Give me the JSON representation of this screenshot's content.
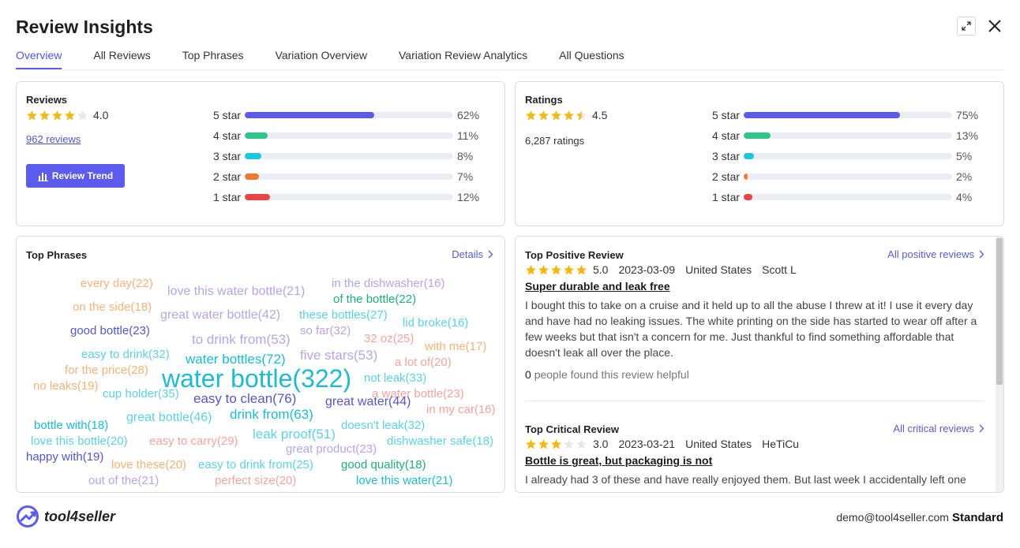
{
  "header": {
    "title": "Review Insights",
    "expand_icon": "expand-icon",
    "close_icon": "close-icon"
  },
  "tabs": [
    {
      "label": "Overview",
      "active": true
    },
    {
      "label": "All Reviews"
    },
    {
      "label": "Top Phrases"
    },
    {
      "label": "Variation Overview"
    },
    {
      "label": "Variation Review Analytics"
    },
    {
      "label": "All Questions"
    }
  ],
  "reviews": {
    "title": "Reviews",
    "rating": "4.0",
    "rating_value": 4.0,
    "count_link": "962 reviews",
    "trend_button": "Review Trend",
    "distribution": [
      {
        "label": "5 star",
        "pct": "62%",
        "value": 62,
        "color": "#5b5be6"
      },
      {
        "label": "4 star",
        "pct": "11%",
        "value": 11,
        "color": "#2ec48a"
      },
      {
        "label": "3 star",
        "pct": "8%",
        "value": 8,
        "color": "#1cc6dd"
      },
      {
        "label": "2 star",
        "pct": "7%",
        "value": 7,
        "color": "#f07a35"
      },
      {
        "label": "1 star",
        "pct": "12%",
        "value": 12,
        "color": "#e84545"
      }
    ]
  },
  "ratings": {
    "title": "Ratings",
    "rating": "4.5",
    "rating_value": 4.5,
    "count": "6,287 ratings",
    "distribution": [
      {
        "label": "5 star",
        "pct": "75%",
        "value": 75,
        "color": "#5b5be6"
      },
      {
        "label": "4 star",
        "pct": "13%",
        "value": 13,
        "color": "#2ec48a"
      },
      {
        "label": "3 star",
        "pct": "5%",
        "value": 5,
        "color": "#1cc6dd"
      },
      {
        "label": "2 star",
        "pct": "2%",
        "value": 2,
        "color": "#f07a35"
      },
      {
        "label": "1 star",
        "pct": "4%",
        "value": 4,
        "color": "#e84545"
      }
    ]
  },
  "top_phrases": {
    "title": "Top Phrases",
    "details_link": "Details",
    "phrases": [
      {
        "text": "every day(22)",
        "color": "#f3b27a"
      },
      {
        "text": "love this water bottle(21)",
        "color": "#b9a3e8"
      },
      {
        "text": "in the dishwasher(16)",
        "color": "#b9a3e8"
      },
      {
        "text": "on the side(18)",
        "color": "#f3b27a"
      },
      {
        "text": "of the bottle(22)",
        "color": "#1fae79"
      },
      {
        "text": "great water bottle(42)",
        "color": "#b9a3e8"
      },
      {
        "text": "these bottles(27)",
        "color": "#5ed0e6"
      },
      {
        "text": "good bottle(23)",
        "color": "#5656c9"
      },
      {
        "text": "lid broke(16)",
        "color": "#5ed0e6"
      },
      {
        "text": "so far(32)",
        "color": "#b9a3e8"
      },
      {
        "text": "to drink from(53)",
        "color": "#b9a3e8"
      },
      {
        "text": "32 oz(25)",
        "color": "#f3a3a0"
      },
      {
        "text": "with me(17)",
        "color": "#f3b27a"
      },
      {
        "text": "easy to drink(32)",
        "color": "#5ed0e6"
      },
      {
        "text": "five stars(53)",
        "color": "#b9a3e8"
      },
      {
        "text": "water bottles(72)",
        "color": "#1fbad0"
      },
      {
        "text": "a lot of(20)",
        "color": "#f3a3a0"
      },
      {
        "text": "for the price(28)",
        "color": "#f3b27a"
      },
      {
        "text": "water bottle(322)",
        "color": "#1fbad0"
      },
      {
        "text": "not leak(33)",
        "color": "#5ed0e6"
      },
      {
        "text": "no leaks(19)",
        "color": "#f3b27a"
      },
      {
        "text": "cup holder(35)",
        "color": "#5ed0e6"
      },
      {
        "text": "easy to clean(76)",
        "color": "#5656c9"
      },
      {
        "text": "a water bottle(23)",
        "color": "#f3a3a0"
      },
      {
        "text": "great water(44)",
        "color": "#5656c9"
      },
      {
        "text": "in my car(16)",
        "color": "#f3a3a0"
      },
      {
        "text": "great bottle(46)",
        "color": "#5ed0e6"
      },
      {
        "text": "drink from(63)",
        "color": "#1fbad0"
      },
      {
        "text": "bottle with(18)",
        "color": "#1fbad0"
      },
      {
        "text": "doesn't leak(32)",
        "color": "#5ed0e6"
      },
      {
        "text": "leak proof(51)",
        "color": "#5ed0e6"
      },
      {
        "text": "love this bottle(20)",
        "color": "#5ed0e6"
      },
      {
        "text": "easy to carry(29)",
        "color": "#f3a3a0"
      },
      {
        "text": "dishwasher safe(18)",
        "color": "#5ed0e6"
      },
      {
        "text": "great product(23)",
        "color": "#b9a3e8"
      },
      {
        "text": "happy with(19)",
        "color": "#5656c9"
      },
      {
        "text": "love these(20)",
        "color": "#f3b27a"
      },
      {
        "text": "easy to drink from(25)",
        "color": "#5ed0e6"
      },
      {
        "text": "good quality(18)",
        "color": "#1fae79"
      },
      {
        "text": "out of the(21)",
        "color": "#b9a3e8"
      },
      {
        "text": "perfect size(20)",
        "color": "#f3a3a0"
      },
      {
        "text": "love this water(21)",
        "color": "#1fbad0"
      }
    ]
  },
  "positive_review": {
    "section_title": "Top Positive Review",
    "link": "All positive reviews",
    "rating": "5.0",
    "rating_value": 5,
    "date": "2023-03-09",
    "country": "United States",
    "author": "Scott L",
    "headline": "Super durable and leak free",
    "body": "I bought this to take on a cruise and it held up to all the abuse I threw at it! I use it every day and have had no leaking issues. The white printing on the side has started to wear off after a few weeks but that isn't a concern for me. Just thankful to find something affordable that doesn't leak all over the place.",
    "helpful_count": "0",
    "helpful_text": "people found this review helpful"
  },
  "critical_review": {
    "section_title": "Top Critical Review",
    "link": "All critical reviews",
    "rating": "3.0",
    "rating_value": 3,
    "date": "2023-03-21",
    "country": "United States",
    "author": "HeTiCu",
    "headline": "Bottle is great, but packaging is not",
    "body": "I already had 3 of these and have really enjoyed them. But last week I accidentally left one"
  },
  "footer": {
    "brand": "tool4seller",
    "email": "demo@tool4seller.com",
    "plan": "Standard"
  },
  "colors": {
    "accent": "#5b5bf0",
    "star": "#f5b617",
    "star_empty": "#e6e6e6"
  }
}
